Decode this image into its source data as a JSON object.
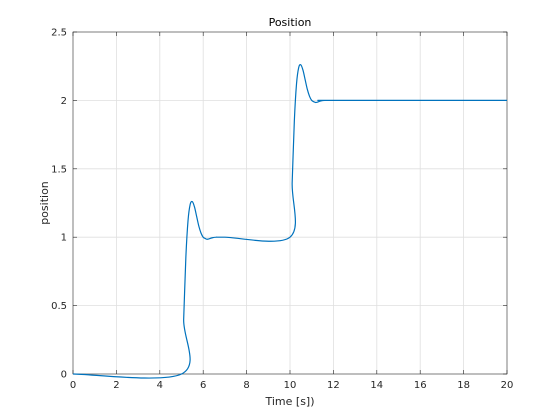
{
  "chart_data": {
    "type": "line",
    "title": "Position",
    "xlabel": "Time [s])",
    "ylabel": "position",
    "xlim": [
      0,
      20
    ],
    "ylim": [
      0,
      2.5
    ],
    "xticks": [
      0,
      2,
      4,
      6,
      8,
      10,
      12,
      14,
      16,
      18,
      20
    ],
    "yticks": [
      0,
      0.5,
      1,
      1.5,
      2,
      2.5
    ],
    "xtick_labels": [
      "0",
      "2",
      "4",
      "6",
      "8",
      "10",
      "12",
      "14",
      "16",
      "18",
      "20"
    ],
    "ytick_labels": [
      "0",
      "0.5",
      "1",
      "1.5",
      "2",
      "2.5"
    ],
    "grid": true,
    "series": [
      {
        "color": "#0072BD",
        "x": [
          0,
          5.0,
          5.1,
          5.2,
          5.3,
          5.4,
          5.5,
          5.6,
          5.7,
          5.8,
          5.9,
          6.0,
          6.1,
          6.2,
          6.4,
          6.6,
          7.0,
          10.0,
          10.1,
          10.2,
          10.3,
          10.4,
          10.5,
          10.6,
          10.7,
          10.8,
          10.9,
          11.0,
          11.1,
          11.2,
          11.4,
          11.6,
          12.0,
          20.0
        ],
        "y": [
          0,
          0.0,
          0.4,
          0.85,
          1.12,
          1.24,
          1.26,
          1.22,
          1.15,
          1.08,
          1.03,
          1.0,
          0.99,
          0.985,
          0.995,
          1.0,
          1.0,
          1.0,
          1.4,
          1.85,
          2.12,
          2.24,
          2.26,
          2.22,
          2.15,
          2.08,
          2.03,
          2.0,
          1.99,
          1.985,
          1.995,
          2.0,
          2.0,
          2.0
        ]
      }
    ]
  },
  "colors": {
    "axis": "#262626",
    "grid": "#dfdfdf",
    "background": "#ffffff"
  }
}
